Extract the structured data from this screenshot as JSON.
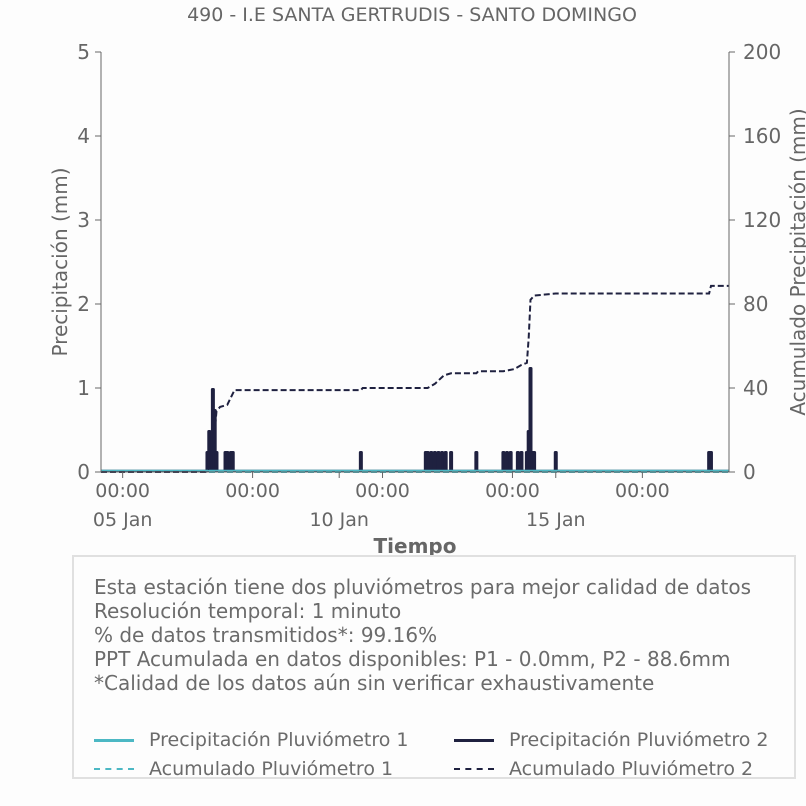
{
  "chart_data": {
    "type": "bar",
    "title": "490 - I.E SANTA GERTRUDIS - SANTO DOMINGO",
    "xlabel": "Tiempo",
    "ylabel": "Precipitación (mm)",
    "y2label": "Acumulado Precipitación (mm)",
    "ylim": [
      0,
      5
    ],
    "y2lim": [
      0,
      200
    ],
    "yticks": [
      "0",
      "1",
      "2",
      "3",
      "4",
      "5"
    ],
    "y2ticks": [
      "0",
      "40",
      "80",
      "120",
      "160",
      "200"
    ],
    "xlim": [
      "2024-01-04 12:00",
      "2024-01-19 00:00"
    ],
    "xticks": [
      {
        "t": "2024-01-05 00:00",
        "time": "00:00",
        "date": "05 Jan"
      },
      {
        "t": "2024-01-08 00:00",
        "time": "00:00",
        "date": ""
      },
      {
        "t": "2024-01-10 00:00",
        "time": "",
        "date": "10 Jan"
      },
      {
        "t": "2024-01-11 00:00",
        "time": "00:00",
        "date": ""
      },
      {
        "t": "2024-01-14 00:00",
        "time": "00:00",
        "date": ""
      },
      {
        "t": "2024-01-15 00:00",
        "time": "",
        "date": "15 Jan"
      },
      {
        "t": "2024-01-17 00:00",
        "time": "00:00",
        "date": ""
      }
    ],
    "series": [
      {
        "name": "Precipitación Pluviómetro 1",
        "kind": "bar",
        "axis": "left",
        "color": "#4cb8c4",
        "points": []
      },
      {
        "name": "Precipitación Pluviómetro 2",
        "kind": "bar",
        "axis": "left",
        "color": "#1f2140",
        "points": [
          [
            "2024-01-06 23:00",
            0.25
          ],
          [
            "2024-01-07 00:00",
            0.5
          ],
          [
            "2024-01-07 01:00",
            0.25
          ],
          [
            "2024-01-07 02:00",
            1.0
          ],
          [
            "2024-01-07 03:00",
            0.75
          ],
          [
            "2024-01-07 04:00",
            0.25
          ],
          [
            "2024-01-07 09:00",
            0.25
          ],
          [
            "2024-01-07 10:00",
            0.25
          ],
          [
            "2024-01-07 12:00",
            0.25
          ],
          [
            "2024-01-07 13:00",
            0.25
          ],
          [
            "2024-01-10 12:00",
            0.25
          ],
          [
            "2024-01-12 00:00",
            0.25
          ],
          [
            "2024-01-12 01:00",
            0.25
          ],
          [
            "2024-01-12 03:00",
            0.25
          ],
          [
            "2024-01-12 05:00",
            0.25
          ],
          [
            "2024-01-12 07:00",
            0.25
          ],
          [
            "2024-01-12 09:00",
            0.25
          ],
          [
            "2024-01-12 11:00",
            0.25
          ],
          [
            "2024-01-12 14:00",
            0.25
          ],
          [
            "2024-01-13 04:00",
            0.25
          ],
          [
            "2024-01-13 19:00",
            0.25
          ],
          [
            "2024-01-13 21:00",
            0.25
          ],
          [
            "2024-01-13 23:00",
            0.25
          ],
          [
            "2024-01-14 03:00",
            0.25
          ],
          [
            "2024-01-14 05:00",
            0.25
          ],
          [
            "2024-01-14 08:00",
            0.25
          ],
          [
            "2024-01-14 09:00",
            0.5
          ],
          [
            "2024-01-14 10:00",
            1.25
          ],
          [
            "2024-01-14 11:00",
            0.25
          ],
          [
            "2024-01-14 12:00",
            0.25
          ],
          [
            "2024-01-15 00:00",
            0.25
          ],
          [
            "2024-01-18 13:00",
            0.25
          ],
          [
            "2024-01-18 14:00",
            0.25
          ]
        ]
      },
      {
        "name": "Acumulado Pluviómetro 1",
        "kind": "line",
        "dash": true,
        "axis": "right",
        "color": "#4cb8c4",
        "points": [
          [
            "2024-01-04 12:00",
            0
          ],
          [
            "2024-01-19 00:00",
            0
          ]
        ]
      },
      {
        "name": "Acumulado Pluviómetro 2",
        "kind": "line",
        "dash": true,
        "axis": "right",
        "color": "#1f2140",
        "points": [
          [
            "2024-01-04 12:00",
            0
          ],
          [
            "2024-01-06 22:00",
            0
          ],
          [
            "2024-01-07 00:00",
            2
          ],
          [
            "2024-01-07 02:00",
            10
          ],
          [
            "2024-01-07 04:00",
            29
          ],
          [
            "2024-01-07 06:00",
            31
          ],
          [
            "2024-01-07 10:00",
            32
          ],
          [
            "2024-01-07 14:00",
            39
          ],
          [
            "2024-01-10 12:00",
            39
          ],
          [
            "2024-01-10 13:00",
            40
          ],
          [
            "2024-01-12 01:00",
            40
          ],
          [
            "2024-01-12 05:00",
            42
          ],
          [
            "2024-01-12 10:00",
            46
          ],
          [
            "2024-01-12 14:00",
            47
          ],
          [
            "2024-01-13 04:00",
            47
          ],
          [
            "2024-01-13 05:00",
            48
          ],
          [
            "2024-01-13 19:00",
            48
          ],
          [
            "2024-01-14 01:00",
            49
          ],
          [
            "2024-01-14 05:00",
            51
          ],
          [
            "2024-01-14 08:00",
            52
          ],
          [
            "2024-01-14 09:00",
            64
          ],
          [
            "2024-01-14 10:00",
            82
          ],
          [
            "2024-01-14 12:00",
            84
          ],
          [
            "2024-01-15 00:00",
            85
          ],
          [
            "2024-01-18 13:00",
            85
          ],
          [
            "2024-01-18 14:00",
            88.6
          ],
          [
            "2024-01-19 00:00",
            88.6
          ]
        ]
      }
    ]
  },
  "info": {
    "line1": "Esta estación tiene dos pluviómetros para mejor calidad de datos",
    "line2": "Resolución temporal: 1 minuto",
    "line3": "% de datos transmitidos*: 99.16%",
    "line4": "PPT Acumulada en datos disponibles: P1 - 0.0mm, P2 - 88.6mm",
    "line5": "*Calidad de los datos aún sin verificar exhaustivamente"
  },
  "legend": {
    "p1_precip": "Precipitación Pluviómetro 1",
    "p2_precip": "Precipitación Pluviómetro 2",
    "p1_accum": "Acumulado Pluviómetro 1",
    "p2_accum": "Acumulado Pluviómetro 2"
  },
  "colors": {
    "p1": "#4cb8c4",
    "p2": "#1f2140",
    "axis": "#666666"
  }
}
